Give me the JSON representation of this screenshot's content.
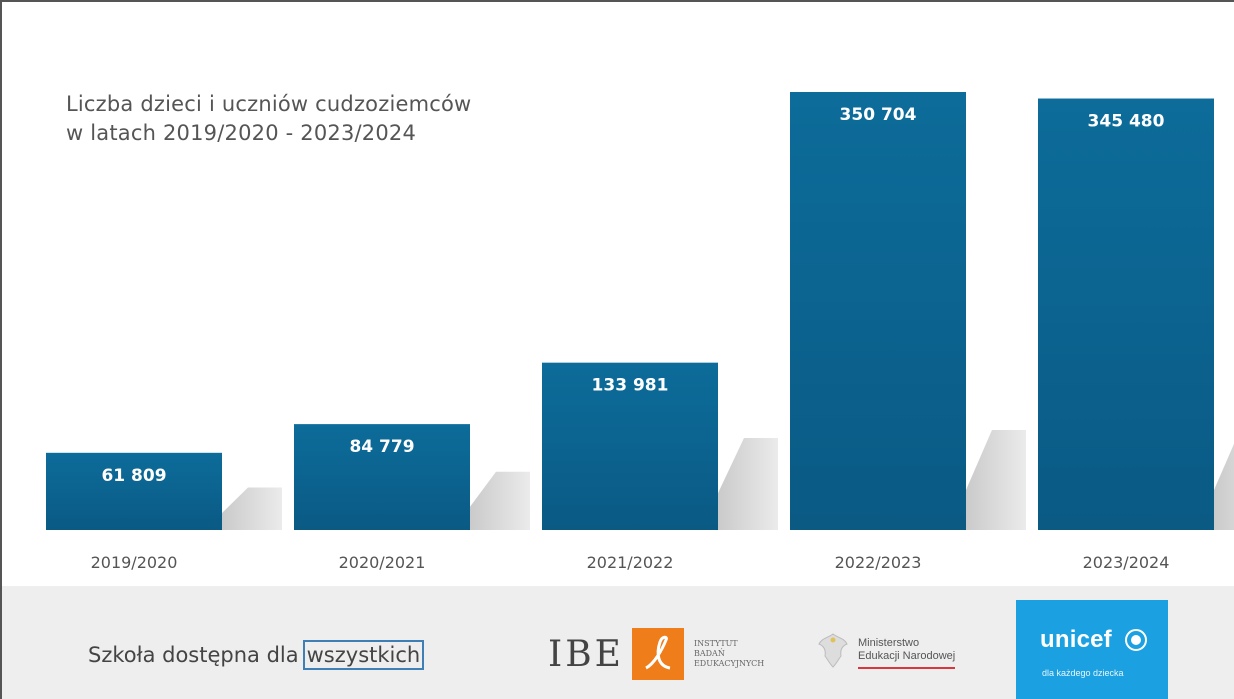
{
  "chart_data": {
    "type": "bar",
    "title_lines": [
      "Liczba dzieci i uczniów cudzoziemców",
      "w latach 2019/2020  - 2023/2024"
    ],
    "categories": [
      "2019/2020",
      "2020/2021",
      "2021/2022",
      "2022/2023",
      "2023/2024"
    ],
    "values": [
      61809,
      84779,
      133981,
      350704,
      345480
    ],
    "value_labels": [
      "61 809",
      "84 779",
      "133 981",
      "350 704",
      "345 480"
    ],
    "ylim": [
      0,
      350704
    ],
    "bar_color": "#0b6491",
    "grid": false,
    "legend": "none"
  },
  "footer": {
    "tagline_prefix": "Szkoła dostępna dla",
    "tagline_boxed": "wszystkich",
    "ibe_logo_text": "IBE",
    "ibe_sub": [
      "INSTYTUT",
      "BADAŃ",
      "EDUKACYJNYCH"
    ],
    "men_sub": [
      "Ministerstwo",
      "Edukacji Narodowej"
    ],
    "unicef_name": "unicef",
    "unicef_sub": "dla każdego dziecka"
  }
}
